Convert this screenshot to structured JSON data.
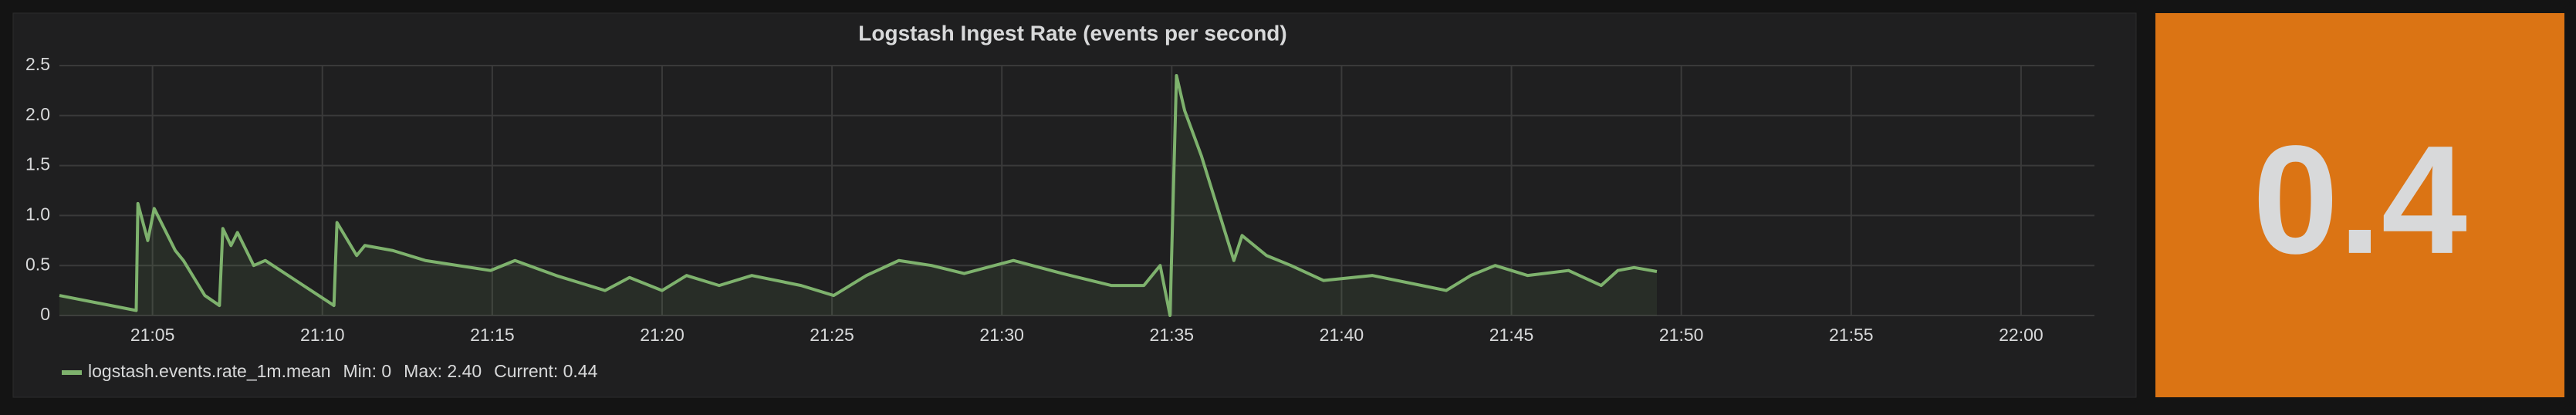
{
  "chart_data": {
    "type": "line",
    "title": "Logstash Ingest Rate (events per second)",
    "series": [
      {
        "name": "logstash.events.rate_1m.mean",
        "color": "#7eb26d",
        "x": [
          2.26,
          4.52,
          4.57,
          4.86,
          5.05,
          5.67,
          5.91,
          6.54,
          6.97,
          7.07,
          7.31,
          7.5,
          7.98,
          8.32,
          10.34,
          10.43,
          11.01,
          11.25,
          12.07,
          13.03,
          14.95,
          15.67,
          16.88,
          18.32,
          19.04,
          20.0,
          20.72,
          21.68,
          22.64,
          24.09,
          25.05,
          26.01,
          26.97,
          27.93,
          28.89,
          30.34,
          31.78,
          33.22,
          34.18,
          34.66,
          34.95,
          35.14,
          35.38,
          35.87,
          36.83,
          37.07,
          37.79,
          38.51,
          39.47,
          40.91,
          42.36,
          43.08,
          43.8,
          44.52,
          45.48,
          46.68,
          47.64,
          48.13,
          48.61,
          49.28
        ],
        "values": [
          0.2,
          0.05,
          1.12,
          0.75,
          1.07,
          0.65,
          0.55,
          0.2,
          0.1,
          0.87,
          0.7,
          0.83,
          0.5,
          0.55,
          0.1,
          0.93,
          0.6,
          0.7,
          0.65,
          0.55,
          0.45,
          0.55,
          0.4,
          0.25,
          0.38,
          0.25,
          0.4,
          0.3,
          0.4,
          0.3,
          0.2,
          0.4,
          0.55,
          0.5,
          0.42,
          0.55,
          0.42,
          0.3,
          0.3,
          0.5,
          0,
          2.4,
          2.05,
          1.6,
          0.55,
          0.8,
          0.6,
          0.5,
          0.35,
          0.4,
          0.3,
          0.25,
          0.4,
          0.5,
          0.4,
          0.45,
          0.3,
          0.45,
          0.48,
          0.44
        ]
      }
    ],
    "legend_stats": [
      "Min: 0",
      "Max: 2.40",
      "Current: 0.44"
    ],
    "xlim": [
      2.26,
      62.16
    ],
    "xticks": [
      {
        "value": 5,
        "label": "21:05"
      },
      {
        "value": 10,
        "label": "21:10"
      },
      {
        "value": 15,
        "label": "21:15"
      },
      {
        "value": 20,
        "label": "21:20"
      },
      {
        "value": 25,
        "label": "21:25"
      },
      {
        "value": 30,
        "label": "21:30"
      },
      {
        "value": 35,
        "label": "21:35"
      },
      {
        "value": 40,
        "label": "21:40"
      },
      {
        "value": 45,
        "label": "21:45"
      },
      {
        "value": 50,
        "label": "21:50"
      },
      {
        "value": 55,
        "label": "21:55"
      },
      {
        "value": 60,
        "label": "22:00"
      }
    ],
    "ylim": [
      0,
      2.5
    ],
    "yticks": [
      0,
      0.5,
      {
        "value": 1,
        "label": "1.0"
      },
      1.5,
      {
        "value": 2,
        "label": "2.0"
      },
      2.5
    ],
    "grid": true
  },
  "stat_panel": {
    "value": "0.4",
    "color": "#db7414"
  }
}
